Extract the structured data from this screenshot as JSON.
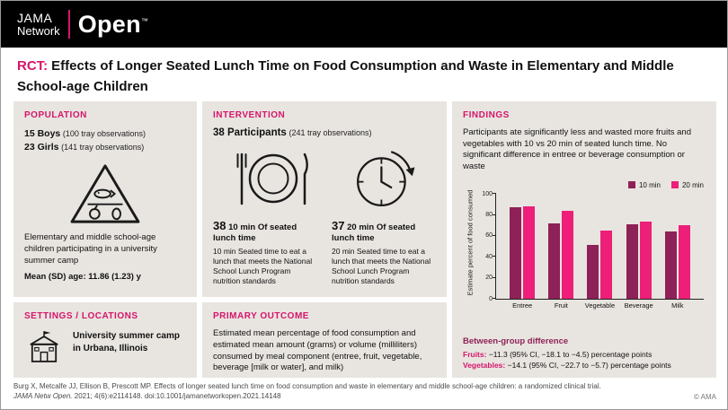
{
  "brand": {
    "jama": "JAMA",
    "network": "Network",
    "open": "Open",
    "tm": "™"
  },
  "title": {
    "tag": "RCT:",
    "text": "Effects of Longer Seated Lunch Time on Food Consumption and Waste in Elementary and Middle School-age Children"
  },
  "population": {
    "header": "POPULATION",
    "boys_count": "15 Boys",
    "boys_note": "(100 tray observations)",
    "girls_count": "23 Girls",
    "girls_note": "(141 tray observations)",
    "description": "Elementary and middle school-age children participating in a university summer camp",
    "age": "Mean (SD) age: 11.86 (1.23) y"
  },
  "settings": {
    "header": "SETTINGS / LOCATIONS",
    "text": "University summer camp in Urbana, Illinois"
  },
  "intervention": {
    "header": "INTERVENTION",
    "participants": "38 Participants",
    "participants_note": "(241 tray observations)",
    "arm1": {
      "number": "38",
      "headline": "10 min Of seated lunch time",
      "description": "10 min Seated time to eat a lunch that meets the National School Lunch Program nutrition standards"
    },
    "arm2": {
      "number": "37",
      "headline": "20 min Of seated lunch time",
      "description": "20 min Seated time to eat a lunch that meets the National School Lunch Program nutrition standards"
    }
  },
  "primary_outcome": {
    "header": "PRIMARY OUTCOME",
    "text": "Estimated mean percentage of food consumption and estimated mean amount (grams) or volume (milliliters) consumed by meal component (entree, fruit, vegetable, beverage [milk or water], and milk)"
  },
  "findings": {
    "header": "FINDINGS",
    "summary": "Participants ate significantly less and wasted more fruits and vegetables with 10 vs 20 min of seated lunch time. No significant difference in entree or beverage consumption or waste",
    "between_group": {
      "title": "Between-group difference",
      "rows": [
        {
          "label": "Fruits:",
          "value": "−11.3 (95% CI, −18.1 to −4.5) percentage points"
        },
        {
          "label": "Vegetables:",
          "value": "−14.1 (95% CI, −22.7 to −5.7) percentage points"
        }
      ]
    }
  },
  "chart_data": {
    "type": "bar",
    "categories": [
      "Entree",
      "Fruit",
      "Vegetable",
      "Beverage",
      "Milk"
    ],
    "series": [
      {
        "name": "10 min",
        "color": "#8e2157",
        "values": [
          87,
          72,
          51,
          71,
          64
        ]
      },
      {
        "name": "20 min",
        "color": "#ed1f79",
        "values": [
          88,
          84,
          65,
          74,
          70
        ]
      }
    ],
    "ylabel": "Estimate percent of food consumed",
    "ylim": [
      0,
      100
    ],
    "yticks": [
      0,
      20,
      40,
      60,
      80,
      100
    ],
    "grid": false,
    "legend_position": "top-right"
  },
  "footer": {
    "citation": "Burg X, Metcalfe JJ, Ellison B, Prescott MP. Effects of longer seated lunch time on food consumption and waste in elementary and middle school-age children: a randomized clinical trial.",
    "journal": "JAMA Netw Open.",
    "citation_rest": "2021; 4(6):e2114148. doi:10.1001/jamanetworkopen.2021.14148",
    "copyright": "© AMA"
  },
  "colors": {
    "accent": "#d6156b",
    "panel_bg": "#e8e5e0",
    "bar_10min": "#8e2157",
    "bar_20min": "#ed1f79",
    "header_bg": "#000000"
  }
}
